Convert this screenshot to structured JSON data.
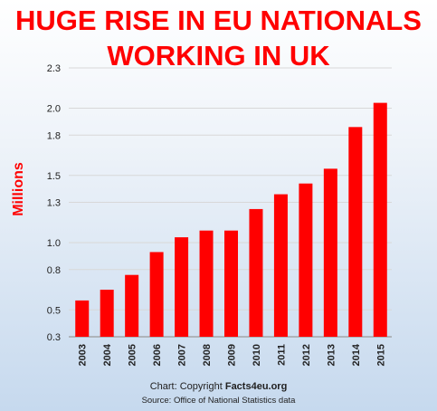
{
  "title_line1": "HUGE RISE IN EU NATIONALS",
  "title_line2": "WORKING IN UK",
  "credit_prefix": "Chart: Copyright ",
  "credit_site": "Facts4eu.org",
  "source": "Source:  Office of National Statistics data",
  "colors": {
    "bar": "#ff0000",
    "title": "#ff0000",
    "grid": "#d8d8d8"
  },
  "chart_data": {
    "type": "bar",
    "title": "HUGE RISE IN EU NATIONALS WORKING IN UK",
    "xlabel": "",
    "ylabel": "Millions",
    "categories": [
      "2003",
      "2004",
      "2005",
      "2006",
      "2007",
      "2008",
      "2009",
      "2010",
      "2011",
      "2012",
      "2013",
      "2014",
      "2015"
    ],
    "values": [
      0.57,
      0.65,
      0.76,
      0.93,
      1.04,
      1.09,
      1.09,
      1.25,
      1.36,
      1.44,
      1.55,
      1.86,
      2.04
    ],
    "ylim": [
      0.3,
      2.3
    ],
    "yticks": [
      0.3,
      0.5,
      0.8,
      1.0,
      1.3,
      1.5,
      1.8,
      2.0,
      2.3
    ],
    "ytick_labels": [
      "0.3",
      "0.5",
      "0.8",
      "1.0",
      "1.3",
      "1.5",
      "1.8",
      "2.0",
      "2.3"
    ],
    "grid": true,
    "legend": "none"
  }
}
